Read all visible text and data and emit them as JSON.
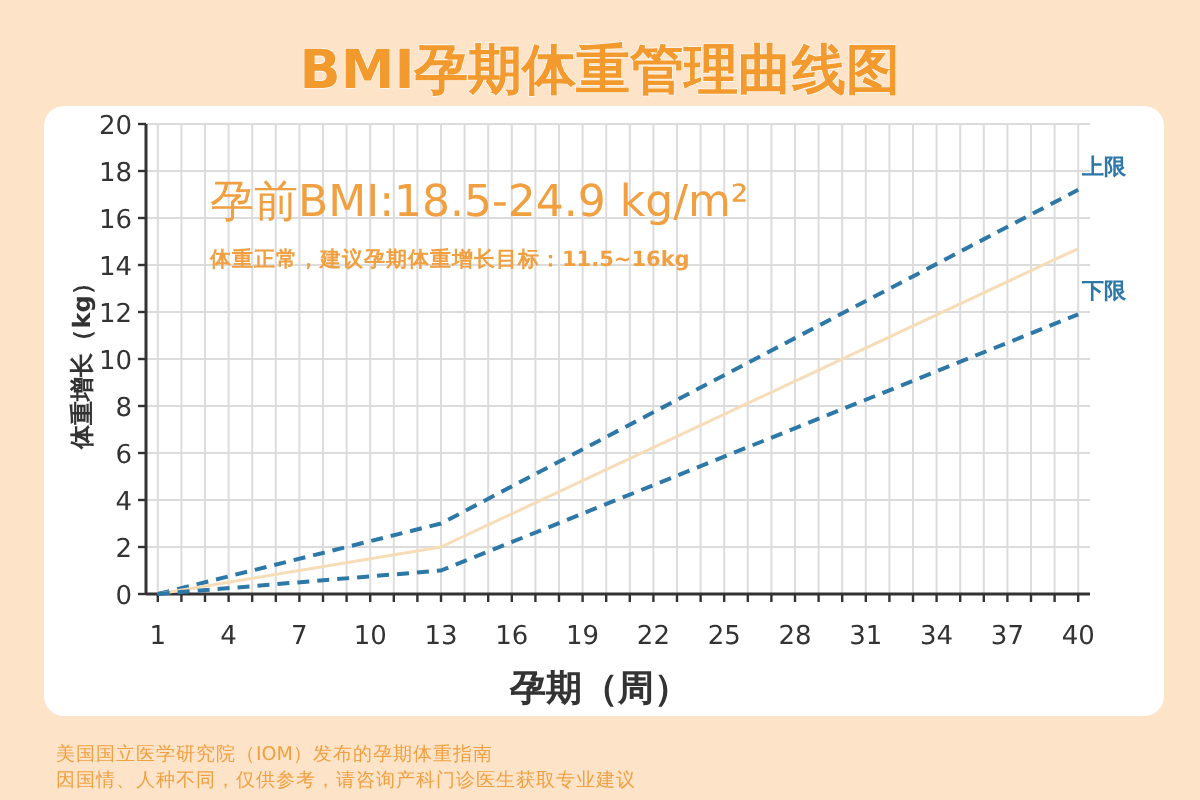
{
  "chart_data": {
    "type": "line",
    "title": "BMI孕期体重管理曲线图",
    "xlabel": "孕期（周）",
    "ylabel": "体重增长（kg）",
    "xlim": [
      0.5,
      40.5
    ],
    "ylim": [
      0,
      20
    ],
    "xticks": [
      1,
      {
        "value": 2,
        "label": null
      },
      {
        "value": 3,
        "label": null
      },
      4,
      {
        "value": 5,
        "label": null
      },
      {
        "value": 6,
        "label": null
      },
      7,
      {
        "value": 8,
        "label": null
      },
      {
        "value": 9,
        "label": null
      },
      10,
      {
        "value": 11,
        "label": null
      },
      {
        "value": 12,
        "label": null
      },
      13,
      {
        "value": 14,
        "label": null
      },
      {
        "value": 15,
        "label": null
      },
      16,
      {
        "value": 17,
        "label": null
      },
      {
        "value": 18,
        "label": null
      },
      19,
      {
        "value": 20,
        "label": null
      },
      {
        "value": 21,
        "label": null
      },
      22,
      {
        "value": 23,
        "label": null
      },
      {
        "value": 24,
        "label": null
      },
      25,
      {
        "value": 26,
        "label": null
      },
      {
        "value": 27,
        "label": null
      },
      28,
      {
        "value": 29,
        "label": null
      },
      {
        "value": 30,
        "label": null
      },
      31,
      {
        "value": 32,
        "label": null
      },
      {
        "value": 33,
        "label": null
      },
      34,
      {
        "value": 35,
        "label": null
      },
      {
        "value": 36,
        "label": null
      },
      37,
      {
        "value": 38,
        "label": null
      },
      {
        "value": 39,
        "label": null
      },
      40
    ],
    "yticks": [
      0,
      2,
      4,
      6,
      8,
      10,
      12,
      14,
      16,
      18,
      20
    ],
    "grid": true,
    "legend": false,
    "marker": "none",
    "series": [
      {
        "name": "上限",
        "color": "#2e78a8",
        "line_style": "dashed",
        "x": [
          1,
          13,
          40
        ],
        "values": [
          0,
          3,
          17.2
        ]
      },
      {
        "color": "#f7dcb8",
        "line_style": "solid",
        "x": [
          1,
          13,
          40
        ],
        "values": [
          0,
          2,
          14.7
        ]
      },
      {
        "name": "下限",
        "color": "#2e78a8",
        "line_style": "dashed",
        "x": [
          1,
          13,
          40
        ],
        "values": [
          0,
          1,
          11.9
        ]
      }
    ],
    "annotations": [
      "孕前BMI:18.5-24.9 kg/m²",
      "体重正常，建议孕期体重增长目标：11.5~16kg",
      "美国国立医学研究院（IOM）发布的孕期体重指南",
      "因国情、人种不同，仅供参考，请咨询产科门诊医生获取专业建议"
    ]
  }
}
